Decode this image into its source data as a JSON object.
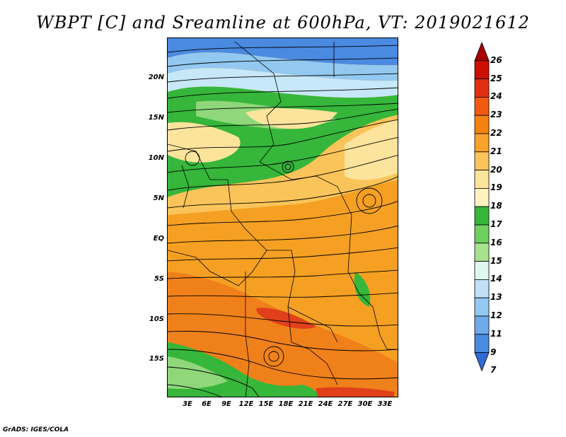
{
  "title": "WBPT [C] and Sreamline at 600hPa, VT: 2019021612",
  "credit": "GrADS: IGES/COLA",
  "lat_labels": [
    "20N",
    "15N",
    "10N",
    "5N",
    "EQ",
    "5S",
    "10S",
    "15S"
  ],
  "lon_labels": [
    "3E",
    "6E",
    "9E",
    "12E",
    "15E",
    "18E",
    "21E",
    "24E",
    "27E",
    "30E",
    "33E"
  ],
  "colorbar": {
    "labels": [
      "26",
      "25",
      "24",
      "23",
      "22",
      "21",
      "20",
      "19",
      "18",
      "17",
      "16",
      "15",
      "14",
      "13",
      "12",
      "11",
      "9",
      "7"
    ],
    "colors": [
      "#a80000",
      "#cc1000",
      "#e03010",
      "#f05a10",
      "#f5820f",
      "#f9a22a",
      "#fbc45a",
      "#fde49c",
      "#fff2c0",
      "#36b63a",
      "#6fcf60",
      "#a7e38f",
      "#e0f6f0",
      "#bfe0f6",
      "#93c8f0",
      "#6ea9e8",
      "#4a8ae0",
      "#2f6bd6"
    ]
  },
  "field_colors": {
    "blue_deep": "#4a8ae0",
    "blue": "#93c8f0",
    "blue_light": "#c6e8f8",
    "green": "#36b63a",
    "green_light": "#8fd77a",
    "cream": "#fde49c",
    "yellow": "#fbc45a",
    "orange": "#f5a022",
    "orange_dark": "#f0801a",
    "red": "#e0401a"
  }
}
